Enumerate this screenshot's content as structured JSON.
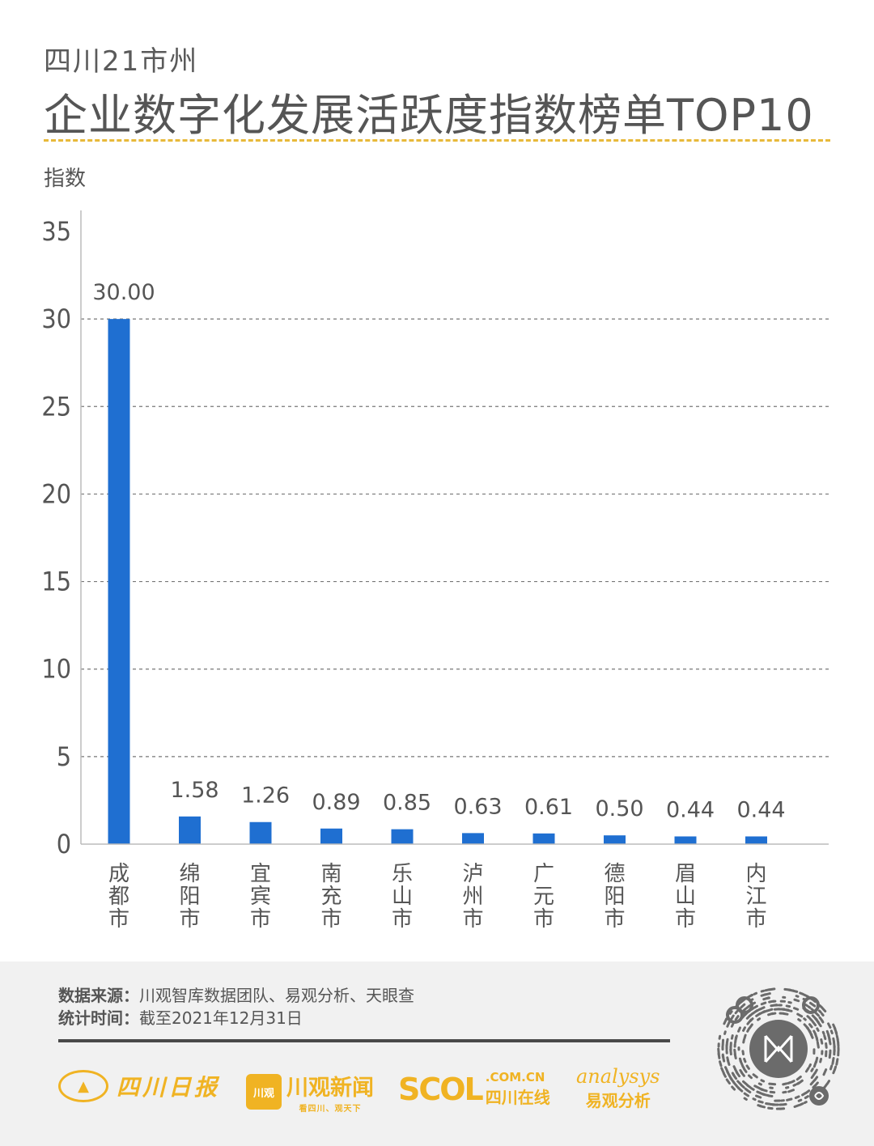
{
  "header": {
    "subtitle": "四川21市州",
    "title": "企业数字化发展活跃度指数榜单TOP10"
  },
  "chart_data": {
    "type": "bar",
    "ylabel": "指数",
    "ylim": [
      0,
      35
    ],
    "yticks": [
      0,
      5,
      10,
      15,
      20,
      25,
      30,
      35
    ],
    "categories": [
      "成都市",
      "绵阳市",
      "宜宾市",
      "南充市",
      "乐山市",
      "泸州市",
      "广元市",
      "德阳市",
      "眉山市",
      "内江市"
    ],
    "values": [
      30.0,
      1.58,
      1.26,
      0.89,
      0.85,
      0.63,
      0.61,
      0.5,
      0.44,
      0.44
    ],
    "value_labels": [
      "30.00",
      "1.58",
      "1.26",
      "0.89",
      "0.85",
      "0.63",
      "0.61",
      "0.50",
      "0.44",
      "0.44"
    ],
    "bar_color": "#1f6fd1",
    "grid": true,
    "grid_style": "dashed"
  },
  "footer": {
    "source_label": "数据来源：",
    "source_value": "川观智库数据团队、易观分析、天眼查",
    "date_label": "统计时间：",
    "date_value": "截至2021年12月31日"
  },
  "logos": {
    "scdaily": "四川日报",
    "cgnews": "川观新闻",
    "cgnews_box": "川观",
    "cgnews_slogan": "看四川、观天下",
    "scol_big": "SCOL",
    "scol_domain": ".COM.CN",
    "scol_cn": "四川在线",
    "analysys_en": "analysys",
    "analysys_cn": "易观分析"
  },
  "colors": {
    "accent_gold": "#f0b323",
    "divider_gold": "#e8b93a",
    "text_gray": "#555555"
  }
}
